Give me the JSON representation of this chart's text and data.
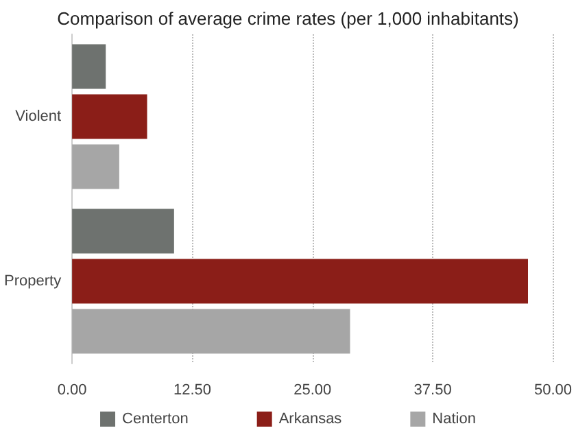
{
  "chart_data": {
    "type": "bar",
    "orientation": "horizontal",
    "title": "Comparison of average crime rates (per 1,000 inhabitants)",
    "categories": [
      "Violent",
      "Property"
    ],
    "series": [
      {
        "name": "Centerton",
        "color": "#6e726f",
        "values": [
          3.5,
          10.6
        ]
      },
      {
        "name": "Arkansas",
        "color": "#8b1e18",
        "values": [
          7.8,
          47.4
        ]
      },
      {
        "name": "Nation",
        "color": "#a6a6a6",
        "values": [
          4.9,
          28.9
        ]
      }
    ],
    "xlim": [
      0,
      50
    ],
    "xticks": [
      {
        "value": 0,
        "label": "0.00"
      },
      {
        "value": 12.5,
        "label": "12.50"
      },
      {
        "value": 25,
        "label": "25.00"
      },
      {
        "value": 37.5,
        "label": "37.50"
      },
      {
        "value": 50,
        "label": "50.00"
      }
    ],
    "grid": "x",
    "legend": "bottom"
  }
}
